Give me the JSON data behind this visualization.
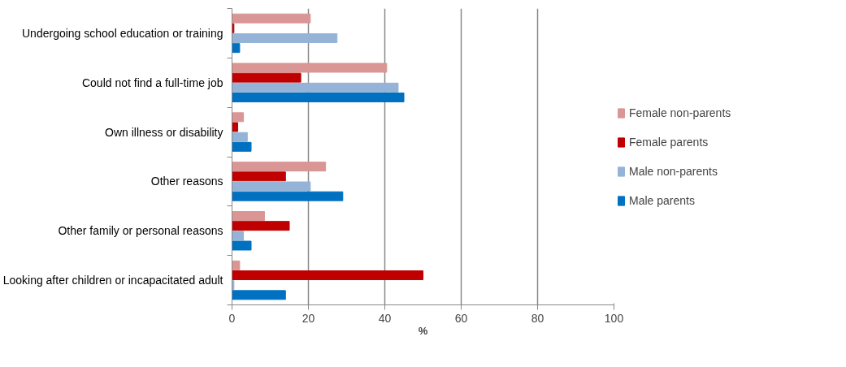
{
  "chart_data": {
    "type": "bar",
    "orientation": "horizontal",
    "xlabel": "%",
    "categories": [
      "Undergoing school education or training",
      "Could not find a full-time job",
      "Own illness or disability",
      "Other reasons",
      "Other family or personal reasons",
      "Looking after children or incapacitated adult"
    ],
    "series": [
      {
        "name": "Female non-parents",
        "color": "#d99694",
        "values": [
          20.5,
          40.5,
          3,
          24.5,
          8.5,
          2
        ]
      },
      {
        "name": "Female parents",
        "color": "#c00000",
        "values": [
          0.5,
          18,
          1.5,
          14,
          15,
          50
        ]
      },
      {
        "name": "Male non-parents",
        "color": "#95b3d7",
        "values": [
          27.5,
          43.5,
          4,
          20.5,
          3,
          0.5
        ]
      },
      {
        "name": "Male parents",
        "color": "#0070c0",
        "values": [
          2,
          45,
          5,
          29,
          5,
          14
        ]
      }
    ],
    "xlim": [
      0,
      100
    ],
    "xticks": [
      0,
      20,
      40,
      60,
      80,
      100
    ],
    "grid": "x",
    "legend": "right"
  }
}
